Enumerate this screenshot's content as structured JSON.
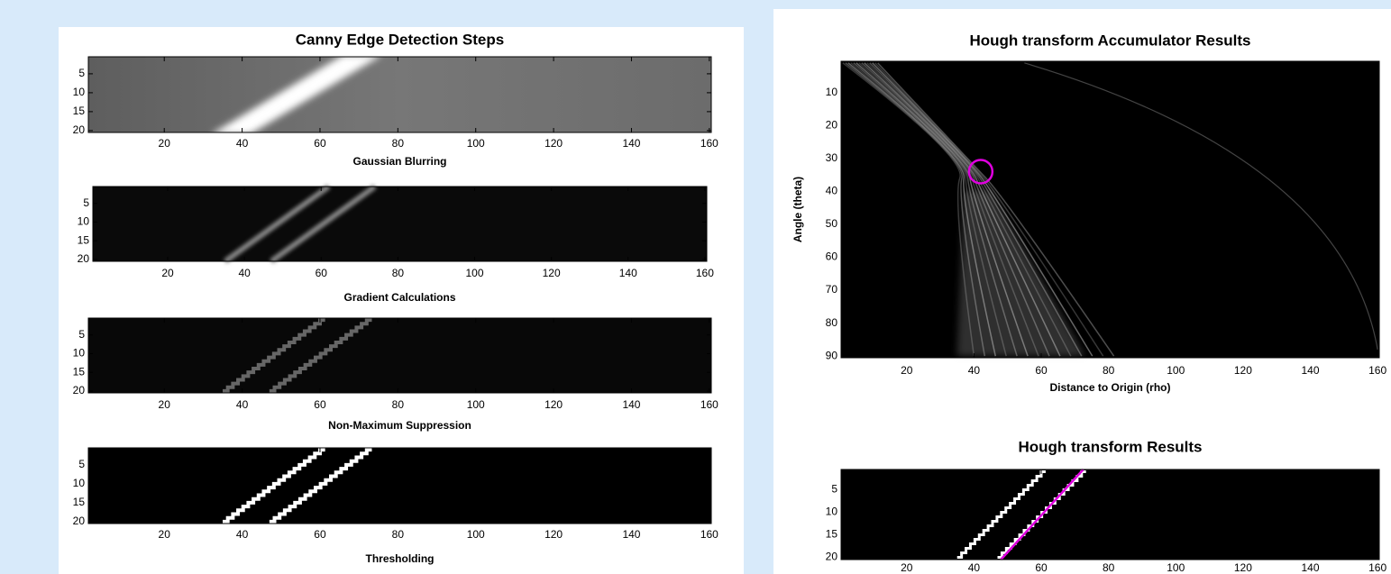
{
  "chart_data": [
    {
      "type": "image",
      "title": "Canny Edge Detection Steps",
      "xlabel": "Gaussian Blurring",
      "xlim": [
        0.5,
        160.5
      ],
      "ylim": [
        0.5,
        20.5
      ],
      "xticks": [
        20,
        40,
        60,
        80,
        100,
        120,
        140,
        160
      ],
      "yticks": [
        5,
        10,
        15,
        20
      ]
    },
    {
      "type": "image",
      "xlabel": "Gradient Calculations",
      "xlim": [
        0.5,
        160.5
      ],
      "ylim": [
        0.5,
        20.5
      ],
      "xticks": [
        20,
        40,
        60,
        80,
        100,
        120,
        140,
        160
      ],
      "yticks": [
        5,
        10,
        15,
        20
      ]
    },
    {
      "type": "image",
      "xlabel": "Non-Maximum Suppression",
      "xlim": [
        0.5,
        160.5
      ],
      "ylim": [
        0.5,
        20.5
      ],
      "xticks": [
        20,
        40,
        60,
        80,
        100,
        120,
        140,
        160
      ],
      "yticks": [
        5,
        10,
        15,
        20
      ]
    },
    {
      "type": "image",
      "xlabel": "Thresholding",
      "xlim": [
        0.5,
        160.5
      ],
      "ylim": [
        0.5,
        20.5
      ],
      "xticks": [
        20,
        40,
        60,
        80,
        100,
        120,
        140,
        160
      ],
      "yticks": [
        5,
        10,
        15,
        20
      ]
    },
    {
      "type": "image",
      "title": "Hough transform Accumulator Results",
      "xlabel": "Distance to Origin (rho)",
      "ylabel": "Angle (theta)",
      "xlim": [
        0.5,
        160.5
      ],
      "ylim": [
        0.5,
        90.5
      ],
      "xticks": [
        20,
        40,
        60,
        80,
        100,
        120,
        140,
        160
      ],
      "yticks": [
        10,
        20,
        30,
        40,
        50,
        60,
        70,
        80,
        90
      ]
    },
    {
      "type": "image",
      "title": "Hough transform Results",
      "xlim": [
        0.5,
        160.5
      ],
      "ylim": [
        0.5,
        20.5
      ],
      "xticks": [
        20,
        40,
        60,
        80,
        100,
        120,
        140,
        160
      ],
      "yticks": [
        5,
        10,
        15,
        20
      ]
    }
  ]
}
